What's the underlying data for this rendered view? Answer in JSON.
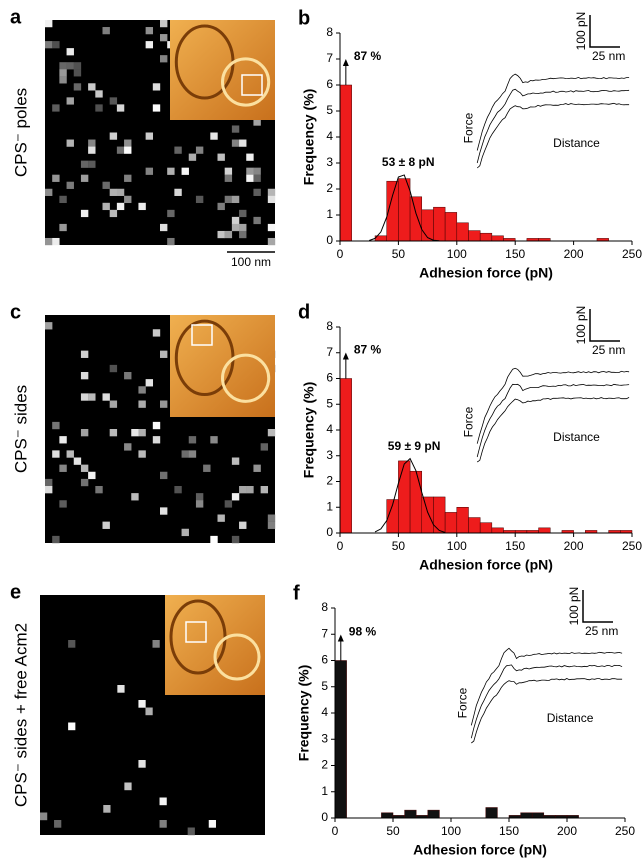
{
  "maps": [
    {
      "panel_label": "a",
      "label": "CPS⁻ poles",
      "scale_bar": "100 nm"
    },
    {
      "panel_label": "c",
      "label": "CPS⁻ sides"
    },
    {
      "panel_label": "e",
      "label": "CPS⁻ sides + free Acm2"
    }
  ],
  "chart_data": [
    {
      "type": "histogram",
      "panel_label": "b",
      "x_label": "Adhesion force (pN)",
      "y_label": "Frequency (%)",
      "bins": [
        0,
        10,
        20,
        30,
        40,
        50,
        60,
        70,
        80,
        90,
        100,
        110,
        120,
        130,
        140,
        150,
        160,
        170,
        180,
        190,
        200,
        210,
        220,
        230,
        240,
        250
      ],
      "values": [
        6,
        0,
        0,
        0.2,
        2.3,
        2.4,
        1.7,
        1.2,
        1.3,
        1.1,
        0.7,
        0.4,
        0.3,
        0.2,
        0.1,
        0,
        0.1,
        0.1,
        0,
        0,
        0,
        0,
        0.1,
        0,
        0
      ],
      "color": "#ee1c1c",
      "fit": {
        "x": [
          25,
          30,
          35,
          40,
          45,
          50,
          55,
          60,
          65,
          70,
          75,
          80,
          85
        ],
        "y": [
          0.02,
          0.1,
          0.35,
          0.92,
          1.75,
          2.46,
          2.54,
          1.92,
          1.07,
          0.44,
          0.13,
          0.03,
          0.01
        ]
      },
      "annotations": {
        "first_bar": "87 %",
        "fit": "53 ± 8 pN",
        "force": "Force",
        "distance": "Distance",
        "force_scale": "100 pN",
        "distance_scale": "25 nm"
      },
      "xlim": [
        0,
        250
      ],
      "xticks": [
        0,
        50,
        100,
        150,
        200,
        250
      ],
      "ylim": [
        0,
        8
      ],
      "yticks": [
        0,
        1,
        2,
        3,
        4,
        5,
        6,
        7,
        8
      ]
    },
    {
      "type": "histogram",
      "panel_label": "d",
      "x_label": "Adhesion force (pN)",
      "y_label": "Frequency (%)",
      "bins": [
        0,
        10,
        20,
        30,
        40,
        50,
        60,
        70,
        80,
        90,
        100,
        110,
        120,
        130,
        140,
        150,
        160,
        170,
        180,
        190,
        200,
        210,
        220,
        230,
        240,
        250
      ],
      "values": [
        6,
        0,
        0,
        0,
        1.3,
        2.8,
        2.4,
        1.4,
        1.4,
        0.8,
        1.0,
        0.6,
        0.4,
        0.2,
        0.1,
        0.1,
        0.1,
        0.2,
        0,
        0.1,
        0,
        0.1,
        0,
        0.1,
        0.1
      ],
      "color": "#ee1c1c",
      "fit": {
        "x": [
          30,
          35,
          40,
          45,
          50,
          55,
          60,
          65,
          70,
          75,
          80,
          85,
          90
        ],
        "y": [
          0.04,
          0.16,
          0.48,
          1.09,
          1.93,
          2.68,
          2.89,
          2.42,
          1.58,
          0.81,
          0.32,
          0.1,
          0.02
        ]
      },
      "annotations": {
        "first_bar": "87 %",
        "fit": "59 ± 9 pN",
        "force": "Force",
        "distance": "Distance",
        "force_scale": "100 pN",
        "distance_scale": "25 nm"
      },
      "xlim": [
        0,
        250
      ],
      "xticks": [
        0,
        50,
        100,
        150,
        200,
        250
      ],
      "ylim": [
        0,
        8
      ],
      "yticks": [
        0,
        1,
        2,
        3,
        4,
        5,
        6,
        7,
        8
      ]
    },
    {
      "type": "histogram",
      "panel_label": "f",
      "x_label": "Adhesion force (pN)",
      "y_label": "Frequency (%)",
      "bins": [
        0,
        10,
        20,
        30,
        40,
        50,
        60,
        70,
        80,
        90,
        100,
        110,
        120,
        130,
        140,
        150,
        160,
        170,
        180,
        190,
        200,
        210,
        220,
        230,
        240,
        250
      ],
      "values": [
        6,
        0,
        0,
        0,
        0.2,
        0.1,
        0.3,
        0.1,
        0.3,
        0,
        0,
        0,
        0,
        0.4,
        0,
        0.1,
        0.2,
        0.2,
        0.1,
        0.1,
        0.1,
        0,
        0,
        0,
        0
      ],
      "color": "#111111",
      "annotations": {
        "first_bar": "98 %",
        "force": "Force",
        "distance": "Distance",
        "force_scale": "100 pN",
        "distance_scale": "25 nm"
      },
      "xlim": [
        0,
        250
      ],
      "xticks": [
        0,
        50,
        100,
        150,
        200,
        250
      ],
      "ylim": [
        0,
        8
      ],
      "yticks": [
        0,
        1,
        2,
        3,
        4,
        5,
        6,
        7,
        8
      ]
    }
  ]
}
